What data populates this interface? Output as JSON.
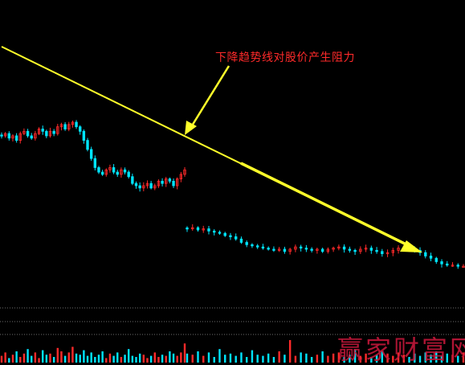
{
  "chart_data": {
    "type": "candlestick",
    "title": "",
    "annotation": "下降趋势线对股价产生阻力",
    "watermark": "赢家财富网",
    "colors": {
      "background": "#000000",
      "up": "#ff2a2a",
      "down": "#00e5ff",
      "trendline": "#ffff2a",
      "grid": "#6e6e6e"
    },
    "ylim": [
      0,
      100
    ],
    "price_closes": [
      72,
      73,
      71,
      72,
      70,
      73,
      74,
      72,
      71,
      73,
      75,
      74,
      72,
      74,
      73,
      76,
      77,
      75,
      77,
      78,
      76,
      74,
      70,
      66,
      62,
      58,
      56,
      55,
      57,
      58,
      56,
      55,
      57,
      56,
      54,
      51,
      50,
      49,
      50,
      51,
      49,
      50,
      52,
      51,
      53,
      52,
      50,
      53,
      55,
      57,
      31,
      31.5,
      30.5,
      31,
      30,
      29.5,
      29,
      28,
      27.5,
      26.5,
      25,
      24,
      23.5,
      23,
      22.5,
      22,
      21.5,
      22,
      21,
      22,
      23,
      22.5,
      22,
      21.5,
      22,
      21,
      22,
      22.5,
      23,
      22,
      21.5,
      21,
      22,
      22.5,
      21.5,
      21,
      20,
      20.5,
      21.5,
      22.5,
      22.5,
      22,
      21.5,
      20.5,
      19,
      18,
      16.5,
      15.5,
      15,
      15,
      14.5,
      14.5
    ],
    "volumes": [
      30,
      45,
      20,
      35,
      50,
      25,
      40,
      60,
      30,
      45,
      20,
      55,
      35,
      40,
      25,
      65,
      50,
      30,
      45,
      70,
      40,
      35,
      55,
      30,
      45,
      25,
      35,
      50,
      20,
      40,
      30,
      45,
      25,
      35,
      60,
      30,
      25,
      40,
      35,
      20,
      30,
      45,
      25,
      35,
      30,
      50,
      40,
      30,
      45,
      85,
      40,
      35,
      50,
      30,
      45,
      25,
      60,
      35,
      40,
      30,
      45,
      25,
      55,
      35,
      30,
      40,
      25,
      50,
      35,
      100,
      30,
      45,
      40,
      25,
      35,
      50,
      30,
      40,
      45,
      25,
      35,
      60,
      30,
      40,
      25,
      35,
      50,
      40,
      30,
      45,
      35,
      25,
      40,
      30,
      45,
      35,
      50,
      30,
      40,
      35,
      30,
      45
    ]
  }
}
